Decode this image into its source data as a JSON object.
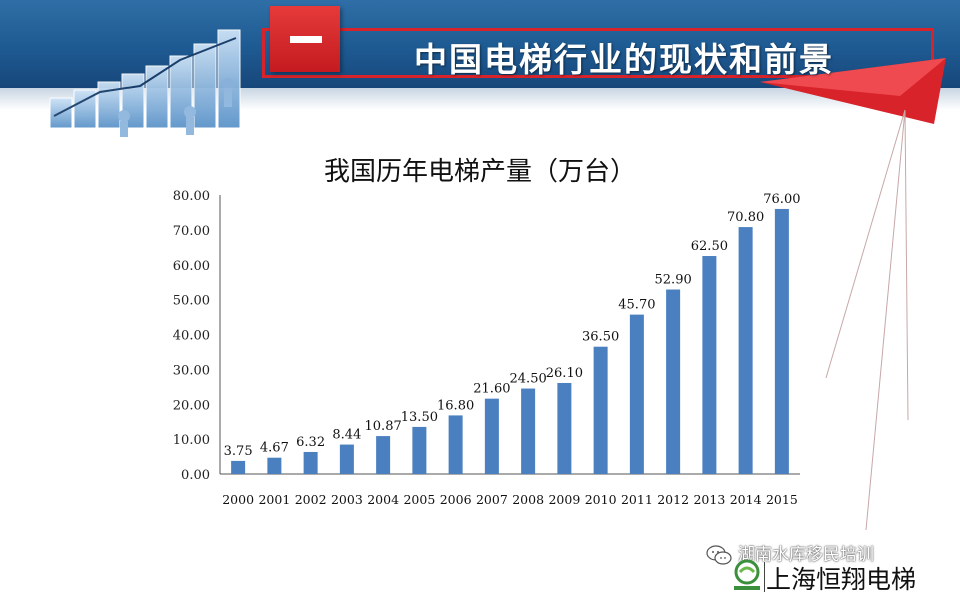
{
  "header": {
    "section_marker": "一",
    "title": "中国电梯行业的现状和前景",
    "accent_color": "#d8232a",
    "band_color": "#1e5a92"
  },
  "chart_data": {
    "type": "bar",
    "title": "我国历年电梯产量（万台）",
    "categories": [
      "2000",
      "2001",
      "2002",
      "2003",
      "2004",
      "2005",
      "2006",
      "2007",
      "2008",
      "2009",
      "2010",
      "2011",
      "2012",
      "2013",
      "2014",
      "2015"
    ],
    "values": [
      3.75,
      4.67,
      6.32,
      8.44,
      10.87,
      13.5,
      16.8,
      21.6,
      24.5,
      26.1,
      36.5,
      45.7,
      52.9,
      62.5,
      70.8,
      76.0
    ],
    "value_labels": [
      "3.75",
      "4.67",
      "6.32",
      "8.44",
      "10.87",
      "13.50",
      "16.80",
      "21.60",
      "24.50",
      "26.10",
      "36.50",
      "45.70",
      "52.90",
      "62.50",
      "70.80",
      "76.00"
    ],
    "y_ticks": [
      "0.00",
      "10.00",
      "20.00",
      "30.00",
      "40.00",
      "50.00",
      "60.00",
      "70.00",
      "80.00"
    ],
    "ylim": [
      0,
      80
    ],
    "bar_color": "#4a7fc0",
    "grid": false,
    "legend": "none"
  },
  "footer": {
    "watermark": "湖南水库移民培训",
    "wechat_icon": "wechat-icon",
    "logo_icon": "hengxiang-logo",
    "brand_name": "上海恒翔电梯"
  }
}
